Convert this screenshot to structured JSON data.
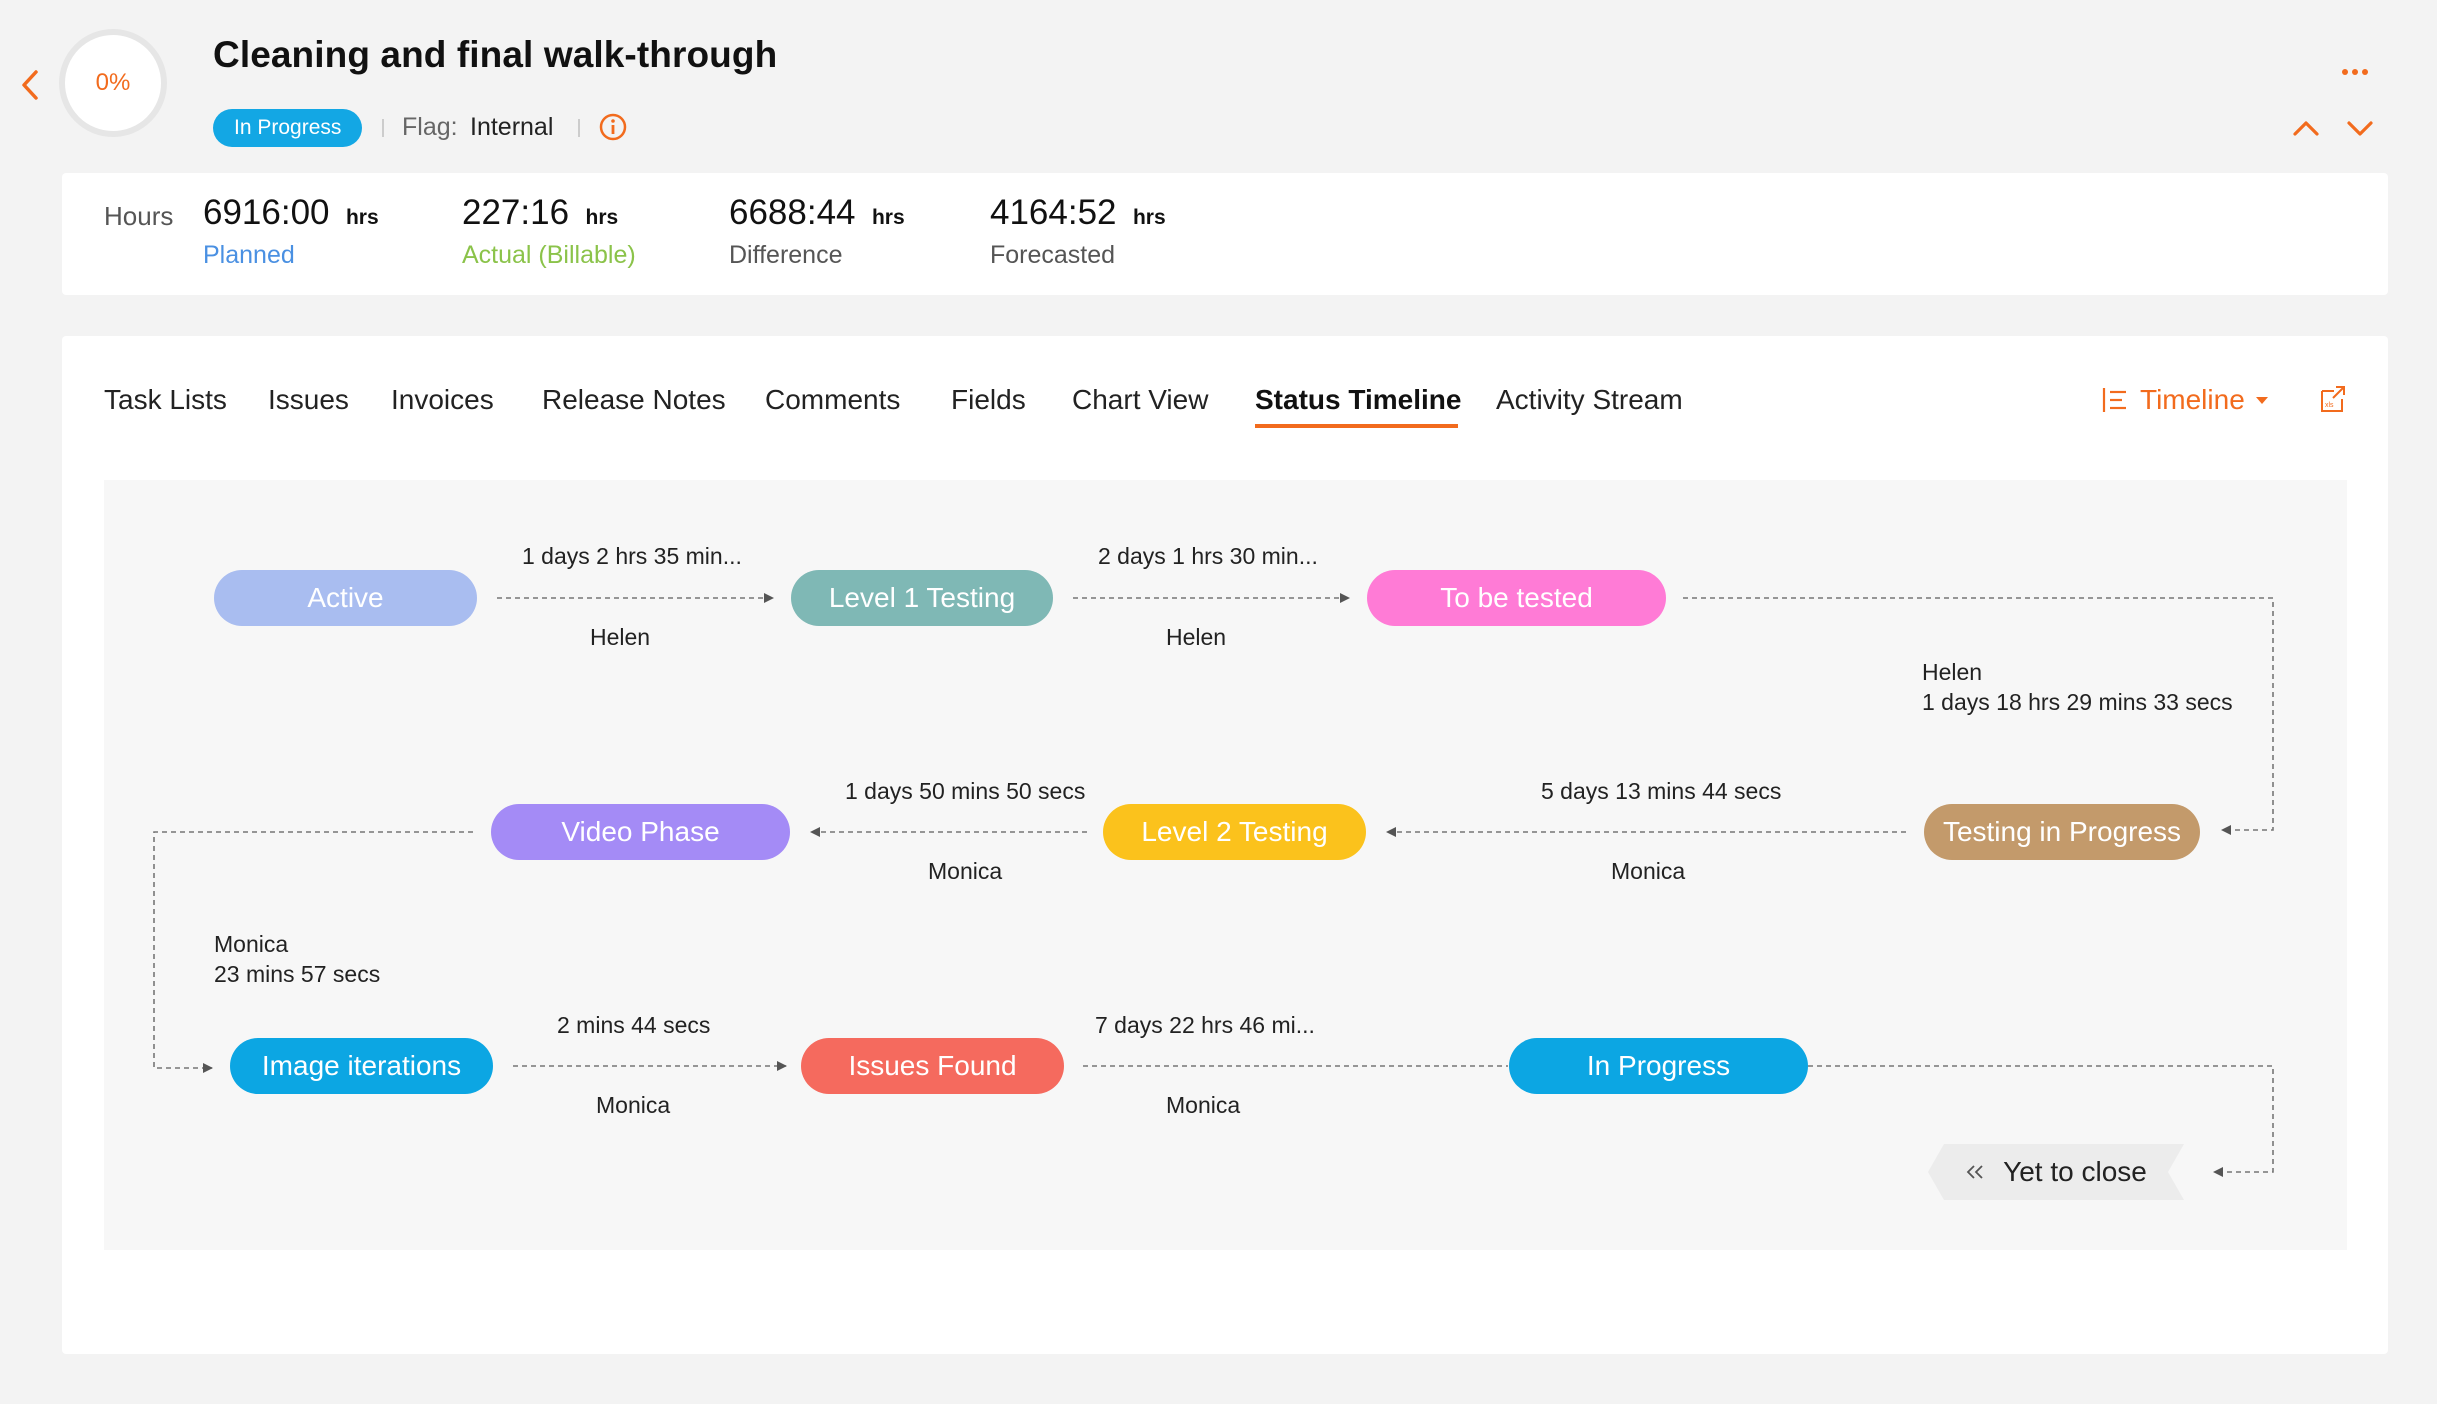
{
  "header": {
    "progress": "0%",
    "title": "Cleaning and final walk-through",
    "status": "In Progress",
    "flag_label": "Flag:",
    "flag_value": "Internal"
  },
  "hours": {
    "label": "Hours",
    "items": [
      {
        "value": "6916:00",
        "unit": "hrs",
        "caption": "Planned",
        "color": "#4a90e2"
      },
      {
        "value": "227:16",
        "unit": "hrs",
        "caption": "Actual (Billable)",
        "color": "#8bc34a"
      },
      {
        "value": "6688:44",
        "unit": "hrs",
        "caption": "Difference",
        "color": "#555555"
      },
      {
        "value": "4164:52",
        "unit": "hrs",
        "caption": "Forecasted",
        "color": "#555555"
      }
    ]
  },
  "tabs": [
    "Task Lists",
    "Issues",
    "Invoices",
    "Release Notes",
    "Comments",
    "Fields",
    "Chart View",
    "Status Timeline",
    "Activity Stream"
  ],
  "active_tab": "Status Timeline",
  "view_selector": "Timeline",
  "timeline": {
    "nodes": [
      {
        "label": "Active",
        "color": "#a9bdf0"
      },
      {
        "label": "Level 1 Testing",
        "color": "#7fb8b5"
      },
      {
        "label": "To be tested",
        "color": "#ff7bd6"
      },
      {
        "label": "Testing in Progress",
        "color": "#c39a6b"
      },
      {
        "label": "Level 2 Testing",
        "color": "#fbc21c"
      },
      {
        "label": "Video Phase",
        "color": "#a48bf6"
      },
      {
        "label": "Image iterations",
        "color": "#0ca6e3"
      },
      {
        "label": "Issues Found",
        "color": "#f56a5e"
      },
      {
        "label": "In Progress",
        "color": "#0ca6e3"
      }
    ],
    "transitions": [
      {
        "duration": "1 days 2 hrs 35 min...",
        "user": "Helen"
      },
      {
        "duration": "2 days 1 hrs 30 min...",
        "user": "Helen"
      },
      {
        "duration": "1 days 18 hrs 29 mins 33 secs",
        "user": "Helen"
      },
      {
        "duration": "5 days 13 mins 44 secs",
        "user": "Monica"
      },
      {
        "duration": "1 days 50 mins 50 secs",
        "user": "Monica"
      },
      {
        "duration": "23 mins 57 secs",
        "user": "Monica"
      },
      {
        "duration": "2 mins 44 secs",
        "user": "Monica"
      },
      {
        "duration": "7 days 22 hrs 46 mi...",
        "user": "Monica"
      }
    ],
    "end_label": "Yet to close"
  },
  "colors": {
    "accent": "#f26b1d",
    "badge": "#13a7e4"
  }
}
